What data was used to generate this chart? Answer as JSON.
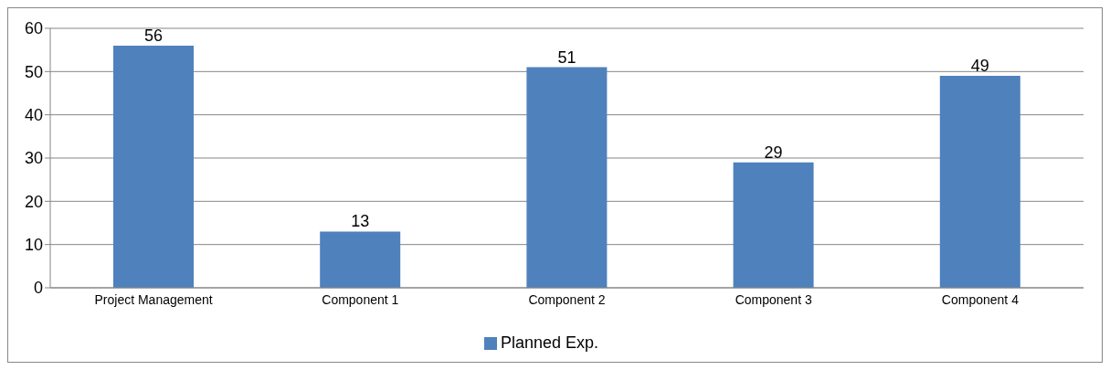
{
  "chart_data": {
    "type": "bar",
    "categories": [
      "Project Management",
      "Component 1",
      "Component 2",
      "Component 3",
      "Component 4"
    ],
    "series": [
      {
        "name": "Planned Exp.",
        "color": "#4f81bd",
        "values": [
          56,
          13,
          51,
          29,
          49
        ]
      }
    ],
    "ylim": [
      0,
      60
    ],
    "yticks": [
      0,
      10,
      20,
      30,
      40,
      50,
      60
    ],
    "grid": "y",
    "legend": "bottom",
    "data_labels": true
  }
}
